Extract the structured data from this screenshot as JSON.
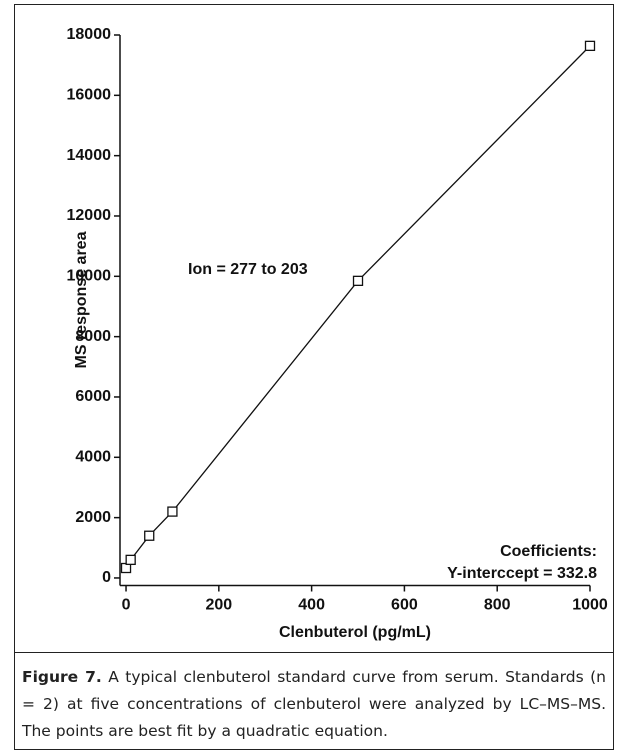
{
  "chart_data": {
    "type": "line",
    "x_label": "Clenbuterol (pg/mL)",
    "y_label": "MS response area",
    "x": [
      0,
      10,
      50,
      100,
      500,
      1000
    ],
    "values": [
      330,
      600,
      1400,
      2200,
      9850,
      17640
    ],
    "color": "#111111",
    "xlim": [
      -13,
      1000
    ],
    "xticks": [
      0,
      200,
      400,
      600,
      800,
      1000
    ],
    "ylim": [
      -250,
      18000
    ],
    "yticks": [
      0,
      2000,
      4000,
      6000,
      8000,
      10000,
      12000,
      14000,
      16000,
      18000
    ],
    "annotations": [
      "Ion = 277 to 203",
      "Coefficients:",
      "Y-interccept = 332.8"
    ]
  },
  "caption": {
    "label": "Figure 7.",
    "text": "A typical clenbuterol standard curve from serum. Standards (n = 2) at five concentrations of clenbuterol were analyzed by LC–MS–MS. The points are best fit by a quadratic equation."
  }
}
